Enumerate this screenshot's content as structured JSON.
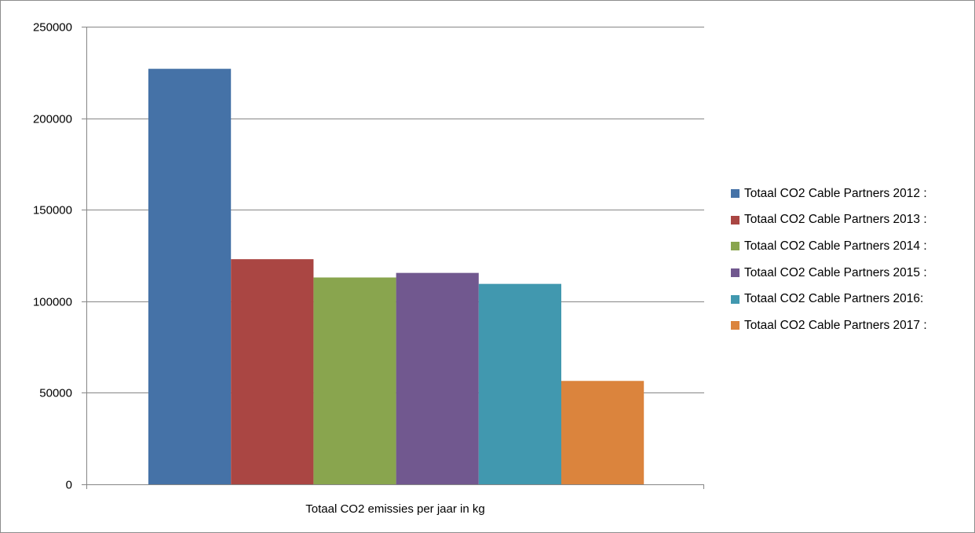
{
  "chart_data": {
    "type": "bar",
    "title": "",
    "xlabel": "",
    "ylabel": "",
    "categories": [
      "Totaal CO2 emissies per jaar in kg"
    ],
    "series": [
      {
        "name": "Totaal CO2 Cable Partners 2012 :",
        "color": "#4572a7",
        "values": [
          227000
        ]
      },
      {
        "name": "Totaal CO2 Cable Partners 2013 :",
        "color": "#aa4643",
        "values": [
          123000
        ]
      },
      {
        "name": "Totaal CO2 Cable Partners 2014 :",
        "color": "#89a54e",
        "values": [
          113000
        ]
      },
      {
        "name": "Totaal CO2 Cable Partners 2015 :",
        "color": "#71588f",
        "values": [
          115500
        ]
      },
      {
        "name": "Totaal CO2 Cable Partners 2016:",
        "color": "#4198af",
        "values": [
          109500
        ]
      },
      {
        "name": "Totaal CO2 Cable Partners 2017 :",
        "color": "#db843d",
        "values": [
          56500
        ]
      }
    ],
    "ylim": [
      0,
      250000
    ],
    "yticks": [
      0,
      50000,
      100000,
      150000,
      200000,
      250000
    ],
    "ytick_labels": [
      "0",
      "50000",
      "100000",
      "150000",
      "200000",
      "250000"
    ],
    "grid": true,
    "legend_position": "right"
  }
}
